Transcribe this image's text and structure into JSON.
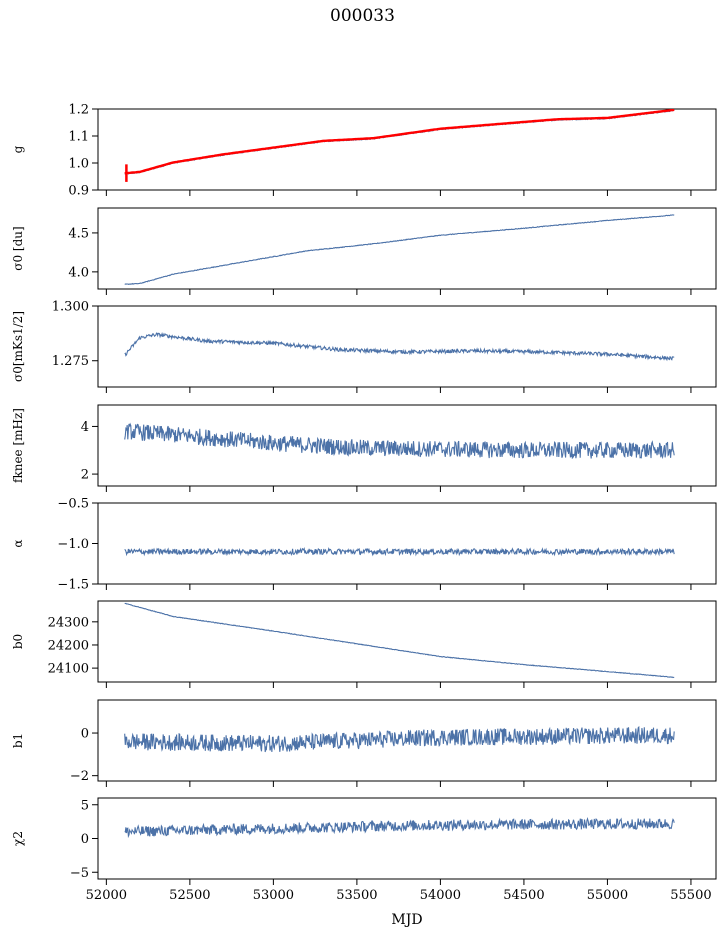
{
  "title": "000033",
  "colors": {
    "series": "#4c72a8",
    "fit": "#ff0000",
    "axis": "#000000"
  },
  "chart_data": {
    "type": "line",
    "xlabel": "MJD",
    "xlim": [
      51950,
      55650
    ],
    "xticks": [
      52000,
      52500,
      53000,
      53500,
      54000,
      54500,
      55000,
      55500
    ],
    "x_range": [
      52110,
      55400
    ],
    "panels": [
      {
        "ylabel": "g",
        "ylim": [
          0.9,
          1.2
        ],
        "yticks": [
          "0.9",
          "1.0",
          "1.1",
          "1.2"
        ],
        "trend": [
          [
            52110,
            0.96
          ],
          [
            52200,
            0.965
          ],
          [
            52400,
            1.0
          ],
          [
            52700,
            1.03
          ],
          [
            53000,
            1.055
          ],
          [
            53300,
            1.08
          ],
          [
            53600,
            1.09
          ],
          [
            54000,
            1.125
          ],
          [
            54300,
            1.14
          ],
          [
            54700,
            1.16
          ],
          [
            55000,
            1.165
          ],
          [
            55400,
            1.195
          ]
        ],
        "noise": 0.002,
        "overlay": {
          "color": "#ff0000",
          "spike_x": 52120,
          "spike_range": [
            0.93,
            0.995
          ]
        }
      },
      {
        "ylabel": "σ0 [du]",
        "ylim": [
          3.78,
          4.82
        ],
        "yticks": [
          "4.0",
          "4.5"
        ],
        "trend": [
          [
            52110,
            3.84
          ],
          [
            52200,
            3.85
          ],
          [
            52400,
            3.97
          ],
          [
            52800,
            4.12
          ],
          [
            53200,
            4.27
          ],
          [
            53600,
            4.36
          ],
          [
            54000,
            4.47
          ],
          [
            54500,
            4.56
          ],
          [
            55000,
            4.66
          ],
          [
            55400,
            4.73
          ]
        ],
        "noise": 0.004
      },
      {
        "ylabel": "σ0[mKs1/2]",
        "ylim": [
          1.263,
          1.3
        ],
        "yticks": [
          "1.275",
          "1.300"
        ],
        "trend": [
          [
            52110,
            1.2775
          ],
          [
            52200,
            1.2855
          ],
          [
            52300,
            1.287
          ],
          [
            52600,
            1.284
          ],
          [
            53000,
            1.283
          ],
          [
            53400,
            1.28
          ],
          [
            53800,
            1.279
          ],
          [
            54200,
            1.2795
          ],
          [
            54600,
            1.279
          ],
          [
            55000,
            1.278
          ],
          [
            55400,
            1.276
          ]
        ],
        "noise": 0.0008
      },
      {
        "ylabel": "fknee [mHz]",
        "ylim": [
          1.5,
          4.9
        ],
        "yticks": [
          "2",
          "4"
        ],
        "trend": [
          [
            52110,
            3.8
          ],
          [
            52500,
            3.6
          ],
          [
            53000,
            3.3
          ],
          [
            53500,
            3.1
          ],
          [
            54000,
            3.05
          ],
          [
            54500,
            3.0
          ],
          [
            55000,
            3.0
          ],
          [
            55400,
            3.0
          ]
        ],
        "noise": 0.35
      },
      {
        "ylabel": "α",
        "ylim": [
          -1.5,
          -0.5
        ],
        "yticks": [
          "−1.5",
          "−1.0",
          "−0.5"
        ],
        "trend": [
          [
            52110,
            -1.1
          ],
          [
            55400,
            -1.1
          ]
        ],
        "noise": 0.035
      },
      {
        "ylabel": "b0",
        "ylim": [
          24040,
          24390
        ],
        "yticks": [
          "24100",
          "24200",
          "24300"
        ],
        "trend": [
          [
            52110,
            24380
          ],
          [
            52400,
            24323
          ],
          [
            53000,
            24260
          ],
          [
            53500,
            24205
          ],
          [
            54000,
            24150
          ],
          [
            54500,
            24115
          ],
          [
            55000,
            24085
          ],
          [
            55400,
            24060
          ]
        ],
        "noise": 1.2
      },
      {
        "ylabel": "b1",
        "ylim": [
          -2.25,
          1.55
        ],
        "yticks": [
          "−2",
          "0"
        ],
        "trend": [
          [
            52110,
            -0.4
          ],
          [
            53000,
            -0.5
          ],
          [
            54000,
            -0.2
          ],
          [
            55400,
            -0.1
          ]
        ],
        "noise": 0.4
      },
      {
        "ylabel": "χ2",
        "ylim": [
          -6,
          6
        ],
        "yticks": [
          "−5",
          "0",
          "5"
        ],
        "trend": [
          [
            52110,
            1.0
          ],
          [
            53000,
            1.5
          ],
          [
            54000,
            2.0
          ],
          [
            55400,
            2.2
          ]
        ],
        "noise": 0.8
      }
    ]
  }
}
